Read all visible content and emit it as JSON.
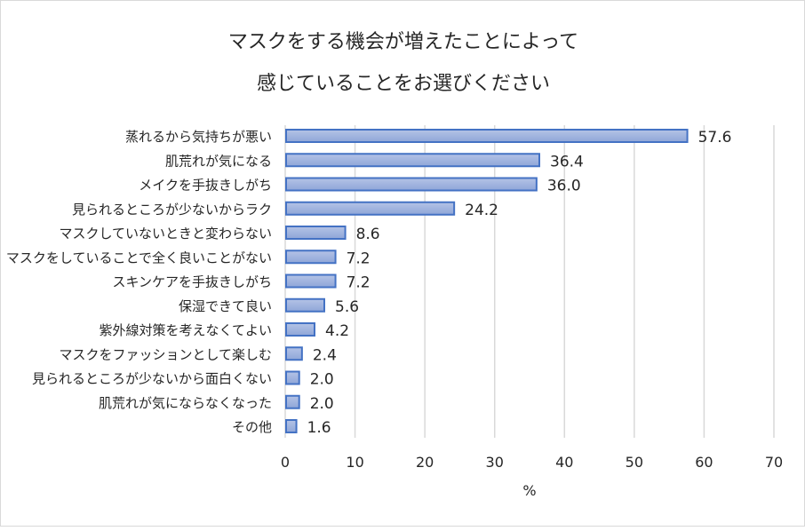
{
  "chart_data": {
    "type": "bar",
    "orientation": "horizontal",
    "title": [
      "マスクをする機会が増えたことによって",
      "感じていることをお選びください"
    ],
    "xlabel": "%",
    "ylabel": "",
    "xlim": [
      0,
      70
    ],
    "xticks": [
      0,
      10,
      20,
      30,
      40,
      50,
      60,
      70
    ],
    "grid": "vertical",
    "legend": "none",
    "categories": [
      "蒸れるから気持ちが悪い",
      "肌荒れが気になる",
      "メイクを手抜きしがち",
      "見られるところが少ないからラク",
      "マスクしていないときと変わらない",
      "マスクをしていることで全く良いことがない",
      "スキンケアを手抜きしがち",
      "保湿できて良い",
      "紫外線対策を考えなくてよい",
      "マスクをファッションとして楽しむ",
      "見られるところが少ないから面白くない",
      "肌荒れが気にならなくなった",
      "その他"
    ],
    "values": [
      57.6,
      36.4,
      36.0,
      24.2,
      8.6,
      7.2,
      7.2,
      5.6,
      4.2,
      2.4,
      2.0,
      2.0,
      1.6
    ],
    "data_labels": [
      "57.6",
      "36.4",
      "36.0",
      "24.2",
      "8.6",
      "7.2",
      "7.2",
      "5.6",
      "4.2",
      "2.4",
      "2.0",
      "2.0",
      "1.6"
    ],
    "colors": {
      "bar_fill_top": "#b4c3e6",
      "bar_fill_bottom": "#8fa6d8",
      "bar_border": "#4472c4",
      "grid": "#d9d9d9"
    }
  }
}
